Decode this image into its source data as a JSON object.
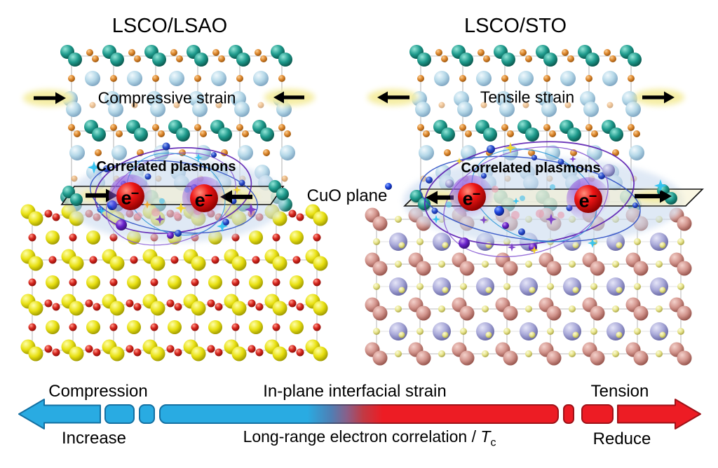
{
  "left_panel": {
    "title": "LSCO/LSAO",
    "strain_label": "Compressive strain",
    "plasmon_label": "Correlated plasmons",
    "strain_direction": "inward-compressive-arrows"
  },
  "right_panel": {
    "title": "LSCO/STO",
    "strain_label": "Tensile strain",
    "plasmon_label": "Correlated plasmons",
    "strain_direction": "outward-tensile-arrows"
  },
  "center": {
    "cuo_plane_label": "CuO plane"
  },
  "electron": {
    "label": "e",
    "sup": "−"
  },
  "bottom_scale": {
    "compression_label": "Compression",
    "increase_label": "Increase",
    "strain_axis_label": "In-plane interfacial strain",
    "correlation_prefix": "Long-range electron correlation / ",
    "correlation_symbol": "T",
    "correlation_subscript": "c",
    "tension_label": "Tension",
    "reduce_label": "Reduce"
  },
  "icons": {
    "compressive_arrows": "black-inward-arrow-icons",
    "tensile_arrows": "black-outward-arrow-icons",
    "compression_end": "blue-left-arrow-icon",
    "tension_end": "red-right-arrow-icon"
  },
  "colors": {
    "teal": "#1e9a8c",
    "light_blue": "#b5d8e8",
    "orange": "#e08a30",
    "yellow": "#e8e012",
    "red_small": "#d82820",
    "salmon": "#d2948c",
    "lavender": "#a8a8d8",
    "pale_yellow": "#e6e388",
    "electron": "#ee1515",
    "halo_purple": "#9458dd",
    "plane_fill": "#f6f0cc",
    "glow_fill": "#ccdcf0",
    "arrow_glow": "#f5eda0",
    "compression_blue": "#29abe2",
    "tension_red": "#ed1c24",
    "stroke_blue": "#1470a2",
    "stroke_red": "#9e1218",
    "orbit_purple": "#5a1db0",
    "orbit_blue": "#2d4fc4",
    "orbit_light": "#8a5cd4",
    "orbit_cyan": "#2f98d8",
    "lattice_line": "#b0b0b0",
    "text": "#000000"
  }
}
